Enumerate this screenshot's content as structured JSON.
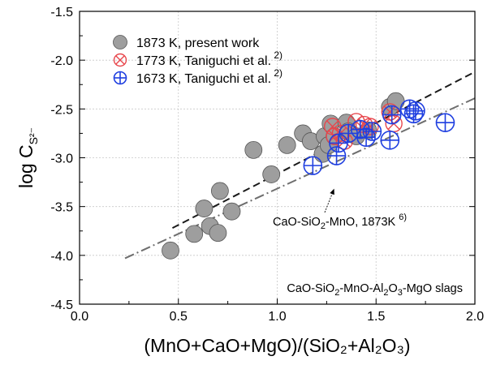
{
  "chart_data": {
    "type": "scatter",
    "xlabel": "(MnO+CaO+MgO)/(SiO₂+Al₂O₃)",
    "ylabel_main": "log C",
    "ylabel_sub": "S²⁻",
    "xlim": [
      0.0,
      2.0
    ],
    "ylim": [
      -4.5,
      -1.5
    ],
    "xticks": [
      "0.0",
      "0.5",
      "1.0",
      "1.5",
      "2.0"
    ],
    "yticks": [
      "-4.5",
      "-4.0",
      "-3.5",
      "-3.0",
      "-2.5",
      "-2.0",
      "-1.5"
    ],
    "grid": true,
    "legend_position": "top-left",
    "series": [
      {
        "name": "1873 K, present work",
        "marker": "filled-circle",
        "color": "#9e9e9e",
        "points": [
          [
            0.46,
            -3.95
          ],
          [
            0.58,
            -3.78
          ],
          [
            0.63,
            -3.52
          ],
          [
            0.66,
            -3.7
          ],
          [
            0.7,
            -3.77
          ],
          [
            0.71,
            -3.34
          ],
          [
            0.77,
            -3.55
          ],
          [
            0.88,
            -2.92
          ],
          [
            0.97,
            -3.17
          ],
          [
            1.05,
            -2.87
          ],
          [
            1.13,
            -2.75
          ],
          [
            1.17,
            -2.83
          ],
          [
            1.23,
            -2.96
          ],
          [
            1.24,
            -2.78
          ],
          [
            1.26,
            -2.87
          ],
          [
            1.27,
            -2.65
          ],
          [
            1.29,
            -2.78
          ],
          [
            1.35,
            -2.64
          ],
          [
            1.36,
            -2.73
          ],
          [
            1.4,
            -2.78
          ],
          [
            1.46,
            -2.72
          ],
          [
            1.57,
            -2.48
          ],
          [
            1.6,
            -2.42
          ]
        ]
      },
      {
        "name": "1773 K, Taniguchi et al.",
        "superscript": "2)",
        "marker": "circle-cross",
        "color": "#e8474d",
        "points": [
          [
            1.28,
            -2.68
          ],
          [
            1.29,
            -2.78
          ],
          [
            1.32,
            -2.75
          ],
          [
            1.34,
            -2.83
          ],
          [
            1.4,
            -2.63
          ],
          [
            1.44,
            -2.66
          ],
          [
            1.47,
            -2.68
          ],
          [
            1.57,
            -2.53
          ],
          [
            1.59,
            -2.65
          ]
        ]
      },
      {
        "name": "1673 K, Taniguchi et al.",
        "superscript": "2)",
        "marker": "circle-plus",
        "color": "#1f3fe0",
        "points": [
          [
            1.18,
            -3.08
          ],
          [
            1.3,
            -2.98
          ],
          [
            1.31,
            -2.85
          ],
          [
            1.36,
            -2.75
          ],
          [
            1.42,
            -2.71
          ],
          [
            1.45,
            -2.79
          ],
          [
            1.48,
            -2.73
          ],
          [
            1.57,
            -2.82
          ],
          [
            1.58,
            -2.56
          ],
          [
            1.67,
            -2.5
          ],
          [
            1.69,
            -2.55
          ],
          [
            1.7,
            -2.52
          ],
          [
            1.85,
            -2.64
          ]
        ]
      }
    ],
    "lines": [
      {
        "name": "dash",
        "style": "dashed",
        "color": "#1a1a1a",
        "points": [
          [
            0.47,
            -3.72
          ],
          [
            2.0,
            -2.12
          ]
        ]
      },
      {
        "name": "dashdot",
        "style": "dash-dot",
        "color": "#6e6e6e",
        "points": [
          [
            0.23,
            -4.03
          ],
          [
            2.0,
            -2.39
          ]
        ]
      }
    ],
    "annotations": {
      "line_label": {
        "text_a": "CaO-SiO",
        "sub_a": "2",
        "text_b": "-MnO, 1873K ",
        "sup": "6)",
        "point_at": [
          1.27,
          -3.3
        ],
        "text_at": [
          1.55,
          -3.65
        ]
      },
      "system_label": {
        "text_a": "CaO-SiO",
        "sub_a": "2",
        "text_b": "-MnO-Al",
        "sub_b": "2",
        "text_c": "O",
        "sub_c": "3",
        "text_d": "-MgO slags"
      }
    }
  }
}
